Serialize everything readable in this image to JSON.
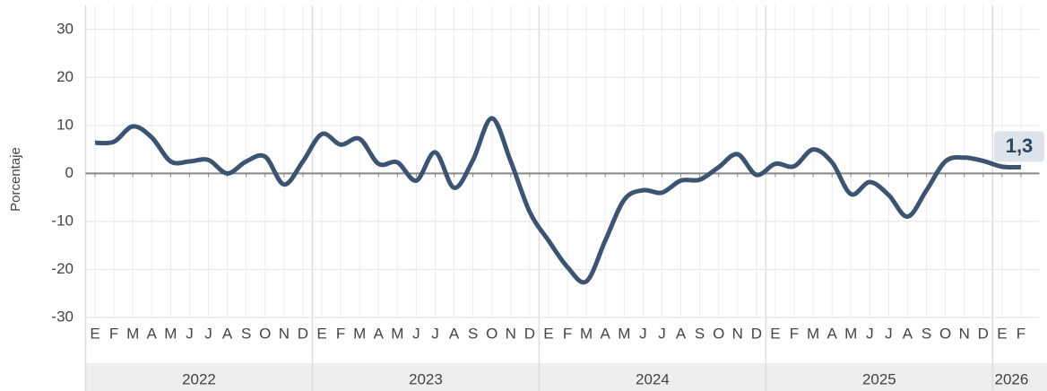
{
  "chart_data": {
    "type": "line",
    "y_label": "Porcentaje",
    "categories": [
      "E",
      "F",
      "M",
      "A",
      "M",
      "J",
      "J",
      "A",
      "S",
      "O",
      "N",
      "D",
      "E",
      "F",
      "M",
      "A",
      "M",
      "J",
      "J",
      "A",
      "S",
      "O",
      "N",
      "D",
      "E",
      "F",
      "M",
      "A",
      "M",
      "J",
      "J",
      "A",
      "S",
      "O",
      "N",
      "D",
      "E",
      "F",
      "M",
      "A",
      "M",
      "J",
      "J",
      "A",
      "S",
      "O",
      "N",
      "D",
      "E",
      "F"
    ],
    "category_groups": [
      "2022",
      "2023",
      "2024",
      "2025",
      "2026"
    ],
    "series": [
      {
        "color": "#3c5472",
        "values": [
          6.4,
          6.6,
          9.8,
          7.5,
          2.5,
          2.5,
          2.8,
          0,
          2.5,
          3.5,
          -2.3,
          2.5,
          8.2,
          6,
          7.2,
          2,
          2.3,
          -1.5,
          4.4,
          -3,
          2.8,
          11.5,
          2.5,
          -8,
          -14,
          -19.5,
          -22.5,
          -14,
          -5.5,
          -3.5,
          -4,
          -1.5,
          -1.3,
          1.3,
          4,
          -0.3,
          2,
          1.5,
          5,
          2.3,
          -4.3,
          -1.8,
          -4.5,
          -9,
          -3.5,
          2.5,
          3.3,
          2.6,
          1.4,
          1.3
        ],
        "value_labels": [
          null,
          null,
          null,
          null,
          null,
          null,
          null,
          null,
          null,
          null,
          null,
          null,
          null,
          null,
          null,
          null,
          null,
          null,
          null,
          null,
          null,
          null,
          null,
          null,
          null,
          null,
          null,
          null,
          null,
          null,
          null,
          null,
          null,
          null,
          null,
          null,
          null,
          null,
          null,
          null,
          null,
          null,
          null,
          null,
          null,
          null,
          null,
          null,
          null,
          "1,3"
        ]
      }
    ],
    "ylim": [
      -30,
      35
    ],
    "yticks": [
      -30,
      -20,
      -10,
      0,
      10,
      20,
      30
    ],
    "grid": true
  }
}
